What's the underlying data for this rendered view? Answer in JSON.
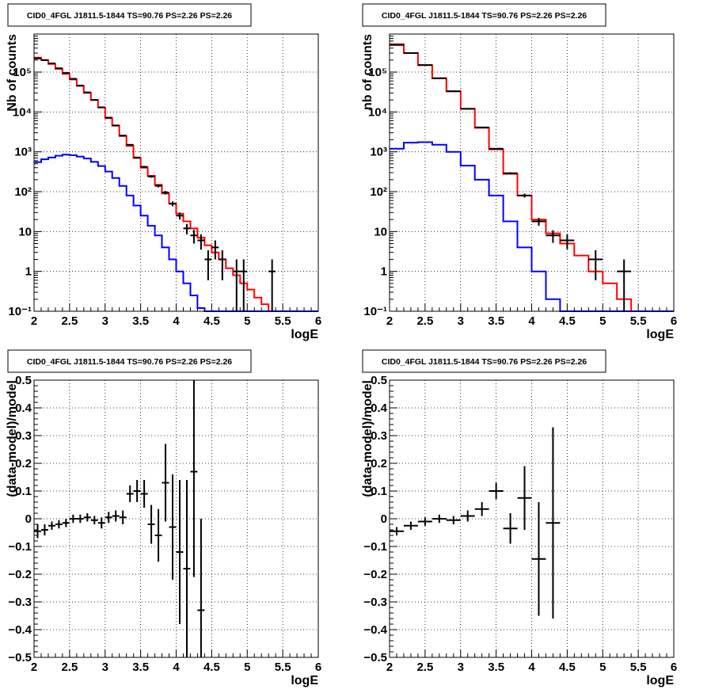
{
  "chart_data": [
    {
      "type": "line",
      "title": "CID0_4FGL J1811.5-1844 TS=90.76 PS=2.26 PS=2.26",
      "xlabel": "logE",
      "ylabel": "Nb of counts",
      "xlim": [
        2,
        6
      ],
      "ylim": [
        0.1,
        900000
      ],
      "yscale": "log",
      "grid": true,
      "xticks": [
        "2",
        "2.5",
        "3",
        "3.5",
        "4",
        "4.5",
        "5",
        "5.5",
        "6"
      ],
      "yticks": [
        {
          "v": 0.1,
          "t": "10⁻¹"
        },
        {
          "v": 1,
          "t": "1"
        },
        {
          "v": 10,
          "t": "10"
        },
        {
          "v": 100,
          "t": "10²"
        },
        {
          "v": 1000,
          "t": "10³"
        },
        {
          "v": 10000,
          "t": "10⁴"
        },
        {
          "v": 100000,
          "t": "10⁵"
        }
      ],
      "bin_edges": [
        2.0,
        2.1,
        2.2,
        2.3,
        2.4,
        2.5,
        2.6,
        2.7,
        2.8,
        2.9,
        3.0,
        3.1,
        3.2,
        3.3,
        3.4,
        3.5,
        3.6,
        3.7,
        3.8,
        3.9,
        4.0,
        4.1,
        4.2,
        4.3,
        4.4,
        4.5,
        4.6,
        4.7,
        4.8,
        4.9,
        5.0,
        5.1,
        5.2,
        5.3,
        5.4,
        5.5,
        5.6,
        5.7,
        5.8,
        5.9,
        6.0
      ],
      "series": [
        {
          "color": "#ff0000",
          "style": "step",
          "values": [
            230000,
            200000,
            160000,
            120000,
            90000,
            65000,
            45000,
            30000,
            20000,
            13000,
            7000,
            4500,
            2500,
            1400,
            700,
            400,
            250,
            150,
            90,
            50,
            28,
            18,
            12,
            7,
            4.5,
            3,
            2,
            1.2,
            0.8,
            0.5,
            0.35,
            0.22,
            0.15,
            0.1,
            0.1,
            0.1,
            0.1,
            0.1,
            0.1,
            0.1
          ]
        },
        {
          "color": "#0000ff",
          "style": "step",
          "values": [
            550,
            650,
            720,
            800,
            850,
            820,
            760,
            680,
            560,
            440,
            320,
            220,
            140,
            80,
            45,
            25,
            14,
            8,
            4,
            2,
            1,
            0.5,
            0.25,
            0.12,
            0.1,
            0.1,
            0.1,
            0.1,
            0.1,
            0.1,
            0.1,
            0.1,
            0.1,
            0.1,
            0.1,
            0.1,
            0.1,
            0.1,
            0.1,
            0.1
          ]
        }
      ],
      "points": [
        {
          "x": 2.05,
          "y": 220000,
          "xe": 0.05,
          "ylo": 219000,
          "yhi": 221000
        },
        {
          "x": 2.15,
          "y": 200000,
          "xe": 0.05,
          "ylo": 199000,
          "yhi": 201000
        },
        {
          "x": 2.25,
          "y": 165000,
          "xe": 0.05,
          "ylo": 164000,
          "yhi": 166000
        },
        {
          "x": 2.35,
          "y": 125000,
          "xe": 0.05,
          "ylo": 124000,
          "yhi": 126000
        },
        {
          "x": 2.45,
          "y": 95000,
          "xe": 0.05,
          "ylo": 94500,
          "yhi": 95500
        },
        {
          "x": 2.55,
          "y": 68000,
          "xe": 0.05,
          "ylo": 67500,
          "yhi": 68500
        },
        {
          "x": 2.65,
          "y": 46000,
          "xe": 0.05,
          "ylo": 45600,
          "yhi": 46400
        },
        {
          "x": 2.75,
          "y": 31000,
          "xe": 0.05,
          "ylo": 30700,
          "yhi": 31300
        },
        {
          "x": 2.85,
          "y": 20000,
          "xe": 0.05,
          "ylo": 19800,
          "yhi": 20200
        },
        {
          "x": 2.95,
          "y": 13000,
          "xe": 0.05,
          "ylo": 12850,
          "yhi": 13150
        },
        {
          "x": 3.05,
          "y": 7200,
          "xe": 0.05,
          "ylo": 7100,
          "yhi": 7300
        },
        {
          "x": 3.15,
          "y": 4600,
          "xe": 0.05,
          "ylo": 4530,
          "yhi": 4670
        },
        {
          "x": 3.25,
          "y": 2550,
          "xe": 0.05,
          "ylo": 2500,
          "yhi": 2600
        },
        {
          "x": 3.35,
          "y": 1500,
          "xe": 0.05,
          "ylo": 1460,
          "yhi": 1540
        },
        {
          "x": 3.45,
          "y": 720,
          "xe": 0.05,
          "ylo": 690,
          "yhi": 750
        },
        {
          "x": 3.55,
          "y": 420,
          "xe": 0.05,
          "ylo": 400,
          "yhi": 440
        },
        {
          "x": 3.65,
          "y": 240,
          "xe": 0.05,
          "ylo": 225,
          "yhi": 255
        },
        {
          "x": 3.75,
          "y": 140,
          "xe": 0.05,
          "ylo": 128,
          "yhi": 152
        },
        {
          "x": 3.85,
          "y": 95,
          "xe": 0.05,
          "ylo": 85,
          "yhi": 105
        },
        {
          "x": 3.95,
          "y": 50,
          "xe": 0.05,
          "ylo": 43,
          "yhi": 57
        },
        {
          "x": 4.05,
          "y": 25,
          "xe": 0.05,
          "ylo": 20,
          "yhi": 30
        },
        {
          "x": 4.15,
          "y": 12,
          "xe": 0.05,
          "ylo": 8.5,
          "yhi": 15.5
        },
        {
          "x": 4.25,
          "y": 8,
          "xe": 0.05,
          "ylo": 5,
          "yhi": 11
        },
        {
          "x": 4.35,
          "y": 6,
          "xe": 0.05,
          "ylo": 3.5,
          "yhi": 8.5
        },
        {
          "x": 4.45,
          "y": 2,
          "xe": 0.05,
          "ylo": 0.6,
          "yhi": 3.4
        },
        {
          "x": 4.55,
          "y": 4,
          "xe": 0.05,
          "ylo": 2,
          "yhi": 6
        },
        {
          "x": 4.65,
          "y": 2,
          "xe": 0.05,
          "ylo": 0.6,
          "yhi": 3.4
        },
        {
          "x": 4.85,
          "y": 1,
          "xe": 0.05,
          "ylo": 0.1,
          "yhi": 2
        },
        {
          "x": 4.95,
          "y": 1,
          "xe": 0.05,
          "ylo": 0.1,
          "yhi": 2
        },
        {
          "x": 5.35,
          "y": 1,
          "xe": 0.05,
          "ylo": 0.1,
          "yhi": 2
        }
      ]
    },
    {
      "type": "line",
      "title": "CID0_4FGL J1811.5-1844 TS=90.76 PS=2.26 PS=2.26",
      "xlabel": "logE",
      "ylabel": "nb of counts",
      "xlim": [
        2,
        6
      ],
      "ylim": [
        0.1,
        900000
      ],
      "yscale": "log",
      "grid": true,
      "xticks": [
        "2",
        "2.5",
        "3",
        "3.5",
        "4",
        "4.5",
        "5",
        "5.5",
        "6"
      ],
      "yticks": [
        {
          "v": 0.1,
          "t": "10⁻¹"
        },
        {
          "v": 1,
          "t": "1"
        },
        {
          "v": 10,
          "t": "10"
        },
        {
          "v": 100,
          "t": "10²"
        },
        {
          "v": 1000,
          "t": "10³"
        },
        {
          "v": 10000,
          "t": "10⁴"
        },
        {
          "v": 100000,
          "t": "10⁵"
        }
      ],
      "bin_edges": [
        2.0,
        2.2,
        2.4,
        2.6,
        2.8,
        3.0,
        3.2,
        3.4,
        3.6,
        3.8,
        4.0,
        4.2,
        4.4,
        4.6,
        4.8,
        5.0,
        5.2,
        5.4,
        5.6,
        5.8,
        6.0
      ],
      "series": [
        {
          "color": "#ff0000",
          "style": "step",
          "values": [
            500000,
            300000,
            150000,
            70000,
            33000,
            12000,
            4000,
            1150,
            280,
            80,
            20,
            9,
            5,
            2.5,
            1,
            0.5,
            0.2,
            0.1,
            0.1,
            0.1
          ]
        },
        {
          "color": "#0000ff",
          "style": "step",
          "values": [
            1200,
            1700,
            1750,
            1500,
            1000,
            450,
            200,
            80,
            18,
            4,
            1,
            0.2,
            0.1,
            0.1,
            0.1,
            0.1,
            0.1,
            0.1,
            0.1,
            0.1
          ]
        }
      ],
      "points": [
        {
          "x": 2.1,
          "y": 480000,
          "xe": 0.1,
          "ylo": 478000,
          "yhi": 482000
        },
        {
          "x": 2.3,
          "y": 300000,
          "xe": 0.1,
          "ylo": 298500,
          "yhi": 301500
        },
        {
          "x": 2.5,
          "y": 150000,
          "xe": 0.1,
          "ylo": 149000,
          "yhi": 151000
        },
        {
          "x": 2.7,
          "y": 70000,
          "xe": 0.1,
          "ylo": 69500,
          "yhi": 70500
        },
        {
          "x": 2.9,
          "y": 33000,
          "xe": 0.1,
          "ylo": 32700,
          "yhi": 33300
        },
        {
          "x": 3.1,
          "y": 12000,
          "xe": 0.1,
          "ylo": 11850,
          "yhi": 12150
        },
        {
          "x": 3.3,
          "y": 4100,
          "xe": 0.1,
          "ylo": 4030,
          "yhi": 4170
        },
        {
          "x": 3.5,
          "y": 1200,
          "xe": 0.1,
          "ylo": 1160,
          "yhi": 1240
        },
        {
          "x": 3.7,
          "y": 290,
          "xe": 0.1,
          "ylo": 272,
          "yhi": 308
        },
        {
          "x": 3.9,
          "y": 80,
          "xe": 0.1,
          "ylo": 71,
          "yhi": 89
        },
        {
          "x": 4.1,
          "y": 18,
          "xe": 0.1,
          "ylo": 14,
          "yhi": 22
        },
        {
          "x": 4.3,
          "y": 8,
          "xe": 0.1,
          "ylo": 5.2,
          "yhi": 10.8
        },
        {
          "x": 4.5,
          "y": 6,
          "xe": 0.1,
          "ylo": 3.6,
          "yhi": 8.4
        },
        {
          "x": 4.9,
          "y": 2,
          "xe": 0.1,
          "ylo": 0.6,
          "yhi": 3.4
        },
        {
          "x": 5.3,
          "y": 1,
          "xe": 0.1,
          "ylo": 0.1,
          "yhi": 2
        }
      ]
    },
    {
      "type": "scatter",
      "title": "CID0_4FGL J1811.5-1844 TS=90.76 PS=2.26 PS=2.26",
      "xlabel": "logE",
      "ylabel": "(data-model)/model",
      "xlim": [
        2,
        6
      ],
      "ylim": [
        -0.5,
        0.5
      ],
      "yscale": "linear",
      "grid": true,
      "xticks": [
        "2",
        "2.5",
        "3",
        "3.5",
        "4",
        "4.5",
        "5",
        "5.5",
        "6"
      ],
      "yticks": [
        {
          "v": -0.5,
          "t": "−0.5"
        },
        {
          "v": -0.4,
          "t": "−0.4"
        },
        {
          "v": -0.3,
          "t": "−0.3"
        },
        {
          "v": -0.2,
          "t": "−0.2"
        },
        {
          "v": -0.1,
          "t": "−0.1"
        },
        {
          "v": 0,
          "t": "0"
        },
        {
          "v": 0.1,
          "t": "0.1"
        },
        {
          "v": 0.2,
          "t": "0.2"
        },
        {
          "v": 0.3,
          "t": "0.3"
        },
        {
          "v": 0.4,
          "t": "0.4"
        },
        {
          "v": 0.5,
          "t": "0.5"
        }
      ],
      "points": [
        {
          "x": 2.05,
          "y": -0.045,
          "xe": 0.05,
          "ylo": -0.07,
          "yhi": -0.02
        },
        {
          "x": 2.15,
          "y": -0.04,
          "xe": 0.05,
          "ylo": -0.06,
          "yhi": -0.02
        },
        {
          "x": 2.25,
          "y": -0.025,
          "xe": 0.05,
          "ylo": -0.04,
          "yhi": -0.01
        },
        {
          "x": 2.35,
          "y": -0.02,
          "xe": 0.05,
          "ylo": -0.035,
          "yhi": -0.005
        },
        {
          "x": 2.45,
          "y": -0.015,
          "xe": 0.05,
          "ylo": -0.03,
          "yhi": 0.0
        },
        {
          "x": 2.55,
          "y": 0.0,
          "xe": 0.05,
          "ylo": -0.015,
          "yhi": 0.015
        },
        {
          "x": 2.65,
          "y": 0.0,
          "xe": 0.05,
          "ylo": -0.015,
          "yhi": 0.015
        },
        {
          "x": 2.75,
          "y": 0.005,
          "xe": 0.05,
          "ylo": -0.01,
          "yhi": 0.02
        },
        {
          "x": 2.85,
          "y": -0.005,
          "xe": 0.05,
          "ylo": -0.02,
          "yhi": 0.01
        },
        {
          "x": 2.95,
          "y": -0.015,
          "xe": 0.05,
          "ylo": -0.035,
          "yhi": 0.005
        },
        {
          "x": 3.05,
          "y": 0.005,
          "xe": 0.05,
          "ylo": -0.015,
          "yhi": 0.025
        },
        {
          "x": 3.15,
          "y": 0.01,
          "xe": 0.05,
          "ylo": -0.01,
          "yhi": 0.03
        },
        {
          "x": 3.25,
          "y": 0.005,
          "xe": 0.05,
          "ylo": -0.02,
          "yhi": 0.03
        },
        {
          "x": 3.35,
          "y": 0.09,
          "xe": 0.05,
          "ylo": 0.06,
          "yhi": 0.12
        },
        {
          "x": 3.45,
          "y": 0.1,
          "xe": 0.05,
          "ylo": 0.06,
          "yhi": 0.14
        },
        {
          "x": 3.55,
          "y": 0.09,
          "xe": 0.05,
          "ylo": 0.04,
          "yhi": 0.14
        },
        {
          "x": 3.65,
          "y": -0.02,
          "xe": 0.05,
          "ylo": -0.09,
          "yhi": 0.05
        },
        {
          "x": 3.75,
          "y": -0.06,
          "xe": 0.05,
          "ylo": -0.155,
          "yhi": 0.035
        },
        {
          "x": 3.85,
          "y": 0.13,
          "xe": 0.05,
          "ylo": -0.01,
          "yhi": 0.27
        },
        {
          "x": 3.95,
          "y": -0.03,
          "xe": 0.05,
          "ylo": -0.22,
          "yhi": 0.16
        },
        {
          "x": 4.05,
          "y": -0.12,
          "xe": 0.05,
          "ylo": -0.38,
          "yhi": 0.14
        },
        {
          "x": 4.15,
          "y": -0.18,
          "xe": 0.05,
          "ylo": -0.5,
          "yhi": 0.14
        },
        {
          "x": 4.25,
          "y": 0.17,
          "xe": 0.05,
          "ylo": -0.21,
          "yhi": 0.5
        },
        {
          "x": 4.35,
          "y": -0.33,
          "xe": 0.05,
          "ylo": -0.5,
          "yhi": 0.0
        }
      ]
    },
    {
      "type": "scatter",
      "title": "CID0_4FGL J1811.5-1844 TS=90.76 PS=2.26 PS=2.26",
      "xlabel": "logE",
      "ylabel": "(data-model)/model",
      "xlim": [
        2,
        6
      ],
      "ylim": [
        -0.5,
        0.5
      ],
      "yscale": "linear",
      "grid": true,
      "xticks": [
        "2",
        "2.5",
        "3",
        "3.5",
        "4",
        "4.5",
        "5",
        "5.5",
        "6"
      ],
      "yticks": [
        {
          "v": -0.5,
          "t": "−0.5"
        },
        {
          "v": -0.4,
          "t": "−0.4"
        },
        {
          "v": -0.3,
          "t": "−0.3"
        },
        {
          "v": -0.2,
          "t": "−0.2"
        },
        {
          "v": -0.1,
          "t": "−0.1"
        },
        {
          "v": 0,
          "t": "0"
        },
        {
          "v": 0.1,
          "t": "0.1"
        },
        {
          "v": 0.2,
          "t": "0.2"
        },
        {
          "v": 0.3,
          "t": "0.3"
        },
        {
          "v": 0.4,
          "t": "0.4"
        },
        {
          "v": 0.5,
          "t": "0.5"
        }
      ],
      "points": [
        {
          "x": 2.1,
          "y": -0.045,
          "xe": 0.1,
          "ylo": -0.06,
          "yhi": -0.03
        },
        {
          "x": 2.3,
          "y": -0.025,
          "xe": 0.1,
          "ylo": -0.04,
          "yhi": -0.01
        },
        {
          "x": 2.5,
          "y": -0.01,
          "xe": 0.1,
          "ylo": -0.025,
          "yhi": 0.005
        },
        {
          "x": 2.7,
          "y": 0.0,
          "xe": 0.1,
          "ylo": -0.015,
          "yhi": 0.015
        },
        {
          "x": 2.9,
          "y": -0.005,
          "xe": 0.1,
          "ylo": -0.02,
          "yhi": 0.01
        },
        {
          "x": 3.1,
          "y": 0.01,
          "xe": 0.1,
          "ylo": -0.01,
          "yhi": 0.03
        },
        {
          "x": 3.3,
          "y": 0.035,
          "xe": 0.1,
          "ylo": 0.01,
          "yhi": 0.06
        },
        {
          "x": 3.5,
          "y": 0.1,
          "xe": 0.1,
          "ylo": 0.07,
          "yhi": 0.13
        },
        {
          "x": 3.7,
          "y": -0.035,
          "xe": 0.1,
          "ylo": -0.09,
          "yhi": 0.02
        },
        {
          "x": 3.9,
          "y": 0.075,
          "xe": 0.1,
          "ylo": -0.04,
          "yhi": 0.19
        },
        {
          "x": 4.1,
          "y": -0.145,
          "xe": 0.1,
          "ylo": -0.35,
          "yhi": 0.06
        },
        {
          "x": 4.3,
          "y": -0.015,
          "xe": 0.1,
          "ylo": -0.36,
          "yhi": 0.33
        }
      ]
    }
  ]
}
